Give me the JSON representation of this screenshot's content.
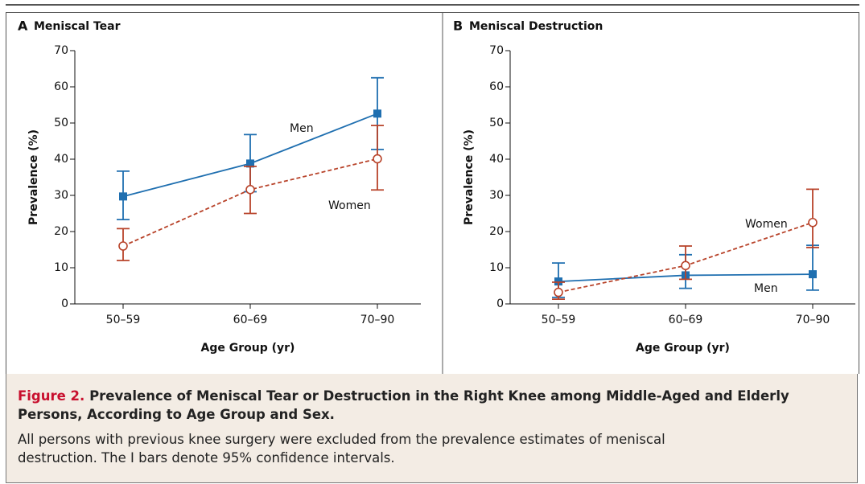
{
  "chart_data": [
    {
      "type": "line",
      "panel": "A",
      "title": "Meniscal Tear",
      "x_label": "Age Group (yr)",
      "y_label": "Prevalence (%)",
      "categories": [
        "50–59",
        "60–69",
        "70–90"
      ],
      "ylim": [
        0,
        70
      ],
      "yticks": [
        0,
        10,
        20,
        30,
        40,
        50,
        60,
        70
      ],
      "series": [
        {
          "name": "Men",
          "color": "#1f6fb0",
          "dashed": false,
          "marker": "square",
          "values": [
            29.7,
            38.8,
            52.6
          ],
          "lower": [
            23.3,
            31.0,
            42.7
          ],
          "upper": [
            36.7,
            46.8,
            62.5
          ]
        },
        {
          "name": "Women",
          "color": "#b8432a",
          "dashed": true,
          "marker": "circle",
          "values": [
            16.0,
            31.6,
            40.1
          ],
          "lower": [
            12.0,
            25.0,
            31.5
          ],
          "upper": [
            20.8,
            38.0,
            49.3
          ]
        }
      ]
    },
    {
      "type": "line",
      "panel": "B",
      "title": "Meniscal Destruction",
      "x_label": "Age Group (yr)",
      "y_label": "Prevalence (%)",
      "categories": [
        "50–59",
        "60–69",
        "70–90"
      ],
      "ylim": [
        0,
        70
      ],
      "yticks": [
        0,
        10,
        20,
        30,
        40,
        50,
        60,
        70
      ],
      "series": [
        {
          "name": "Men",
          "color": "#1f6fb0",
          "dashed": false,
          "marker": "square",
          "values": [
            6.2,
            7.9,
            8.2
          ],
          "lower": [
            1.8,
            4.3,
            3.8
          ],
          "upper": [
            11.3,
            13.6,
            16.2
          ]
        },
        {
          "name": "Women",
          "color": "#b8432a",
          "dashed": true,
          "marker": "circle",
          "values": [
            3.2,
            10.6,
            22.5
          ],
          "lower": [
            1.3,
            6.8,
            15.6
          ],
          "upper": [
            6.0,
            16.0,
            31.7
          ]
        }
      ]
    }
  ],
  "caption": {
    "label": "Figure 2.",
    "title": "Prevalence of Meniscal Tear or Destruction in the Right Knee among Middle-Aged and Elderly Persons, According to Age Group and Sex.",
    "text": "All persons with previous knee surgery were excluded from the prevalence estimates of meniscal destruction. The I bars denote 95% confidence intervals."
  }
}
